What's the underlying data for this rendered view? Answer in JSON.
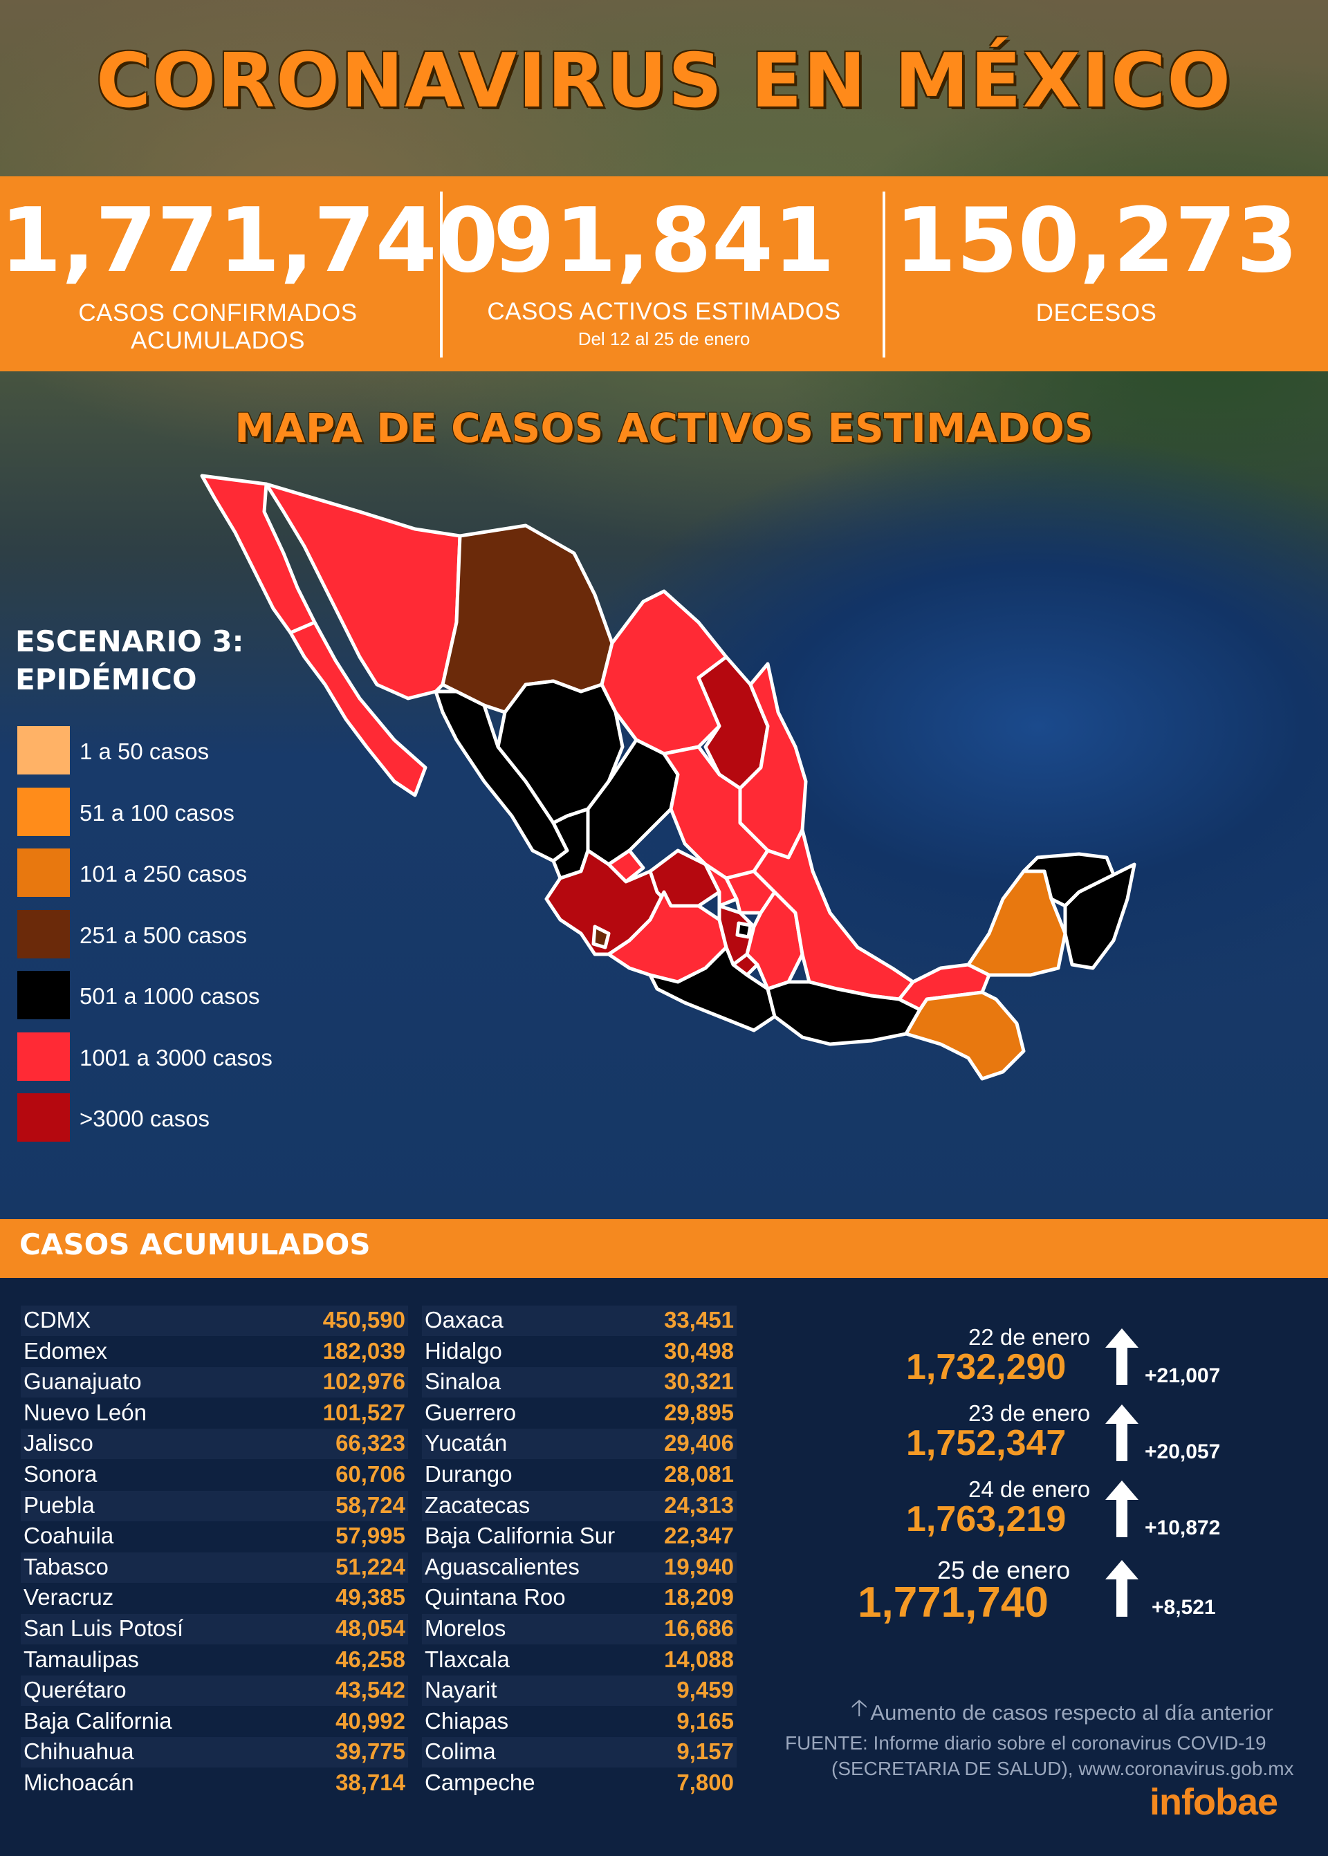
{
  "title": "CORONAVIRUS EN MÉXICO",
  "stats": {
    "confirmed": {
      "value": "1,771,740",
      "label": "CASOS CONFIRMADOS ACUMULADOS"
    },
    "active": {
      "value": "91,841",
      "label": "CASOS ACTIVOS ESTIMADOS",
      "sub": "Del 12 al 25 de enero"
    },
    "deaths": {
      "value": "150,273",
      "label": "DECESOS"
    }
  },
  "map": {
    "title": "MAPA DE CASOS ACTIVOS ESTIMADOS",
    "legend_title_1": "ESCENARIO 3:",
    "legend_title_2": "EPIDÉMICO",
    "legend": [
      {
        "label": "1 a 50 casos",
        "color": "#ffb266"
      },
      {
        "label": "51 a 100 casos",
        "color": "#ff8c1a"
      },
      {
        "label": "101 a 250 casos",
        "color": "#e8780f"
      },
      {
        "label": "251 a 500 casos",
        "color": "#6b2a0a"
      },
      {
        "label": "501 a 1000 casos",
        "color": "#000000"
      },
      {
        "label": "1001 a 3000 casos",
        "color": "#ff2a35"
      },
      {
        "label": ">3000 casos",
        "color": "#b5080f"
      }
    ]
  },
  "accumulated": {
    "title": "CASOS ACUMULADOS",
    "left": [
      {
        "state": "CDMX",
        "value": "450,590"
      },
      {
        "state": "Edomex",
        "value": "182,039"
      },
      {
        "state": "Guanajuato",
        "value": "102,976"
      },
      {
        "state": "Nuevo León",
        "value": "101,527"
      },
      {
        "state": "Jalisco",
        "value": "66,323"
      },
      {
        "state": "Sonora",
        "value": "60,706"
      },
      {
        "state": "Puebla",
        "value": "58,724"
      },
      {
        "state": "Coahuila",
        "value": "57,995"
      },
      {
        "state": "Tabasco",
        "value": "51,224"
      },
      {
        "state": "Veracruz",
        "value": "49,385"
      },
      {
        "state": "San Luis Potosí",
        "value": "48,054"
      },
      {
        "state": "Tamaulipas",
        "value": "46,258"
      },
      {
        "state": "Querétaro",
        "value": "43,542"
      },
      {
        "state": "Baja California",
        "value": "40,992"
      },
      {
        "state": "Chihuahua",
        "value": "39,775"
      },
      {
        "state": "Michoacán",
        "value": "38,714"
      }
    ],
    "right": [
      {
        "state": "Oaxaca",
        "value": "33,451"
      },
      {
        "state": "Hidalgo",
        "value": "30,498"
      },
      {
        "state": "Sinaloa",
        "value": "30,321"
      },
      {
        "state": "Guerrero",
        "value": "29,895"
      },
      {
        "state": "Yucatán",
        "value": "29,406"
      },
      {
        "state": "Durango",
        "value": "28,081"
      },
      {
        "state": "Zacatecas",
        "value": "24,313"
      },
      {
        "state": "Baja California Sur",
        "value": "22,347"
      },
      {
        "state": "Aguascalientes",
        "value": "19,940"
      },
      {
        "state": "Quintana Roo",
        "value": "18,209"
      },
      {
        "state": "Morelos",
        "value": "16,686"
      },
      {
        "state": "Tlaxcala",
        "value": "14,088"
      },
      {
        "state": "Nayarit",
        "value": "9,459"
      },
      {
        "state": "Chiapas",
        "value": "9,165"
      },
      {
        "state": "Colima",
        "value": "9,157"
      },
      {
        "state": "Campeche",
        "value": "7,800"
      }
    ]
  },
  "daily": [
    {
      "date": "22 de enero",
      "total": "1,732,290",
      "increase": "+21,007"
    },
    {
      "date": "23 de enero",
      "total": "1,752,347",
      "increase": "+20,057"
    },
    {
      "date": "24 de enero",
      "total": "1,763,219",
      "increase": "+10,872"
    },
    {
      "date": "25 de enero",
      "total": "1,771,740",
      "increase": "+8,521"
    }
  ],
  "note": "Aumento de casos respecto al día anterior",
  "source_line1": "FUENTE:  Informe diario sobre el coronavirus COVID-19",
  "source_line2": "(SECRETARIA DE SALUD), www.coronavirus.gob.mx",
  "logo": "infobae"
}
